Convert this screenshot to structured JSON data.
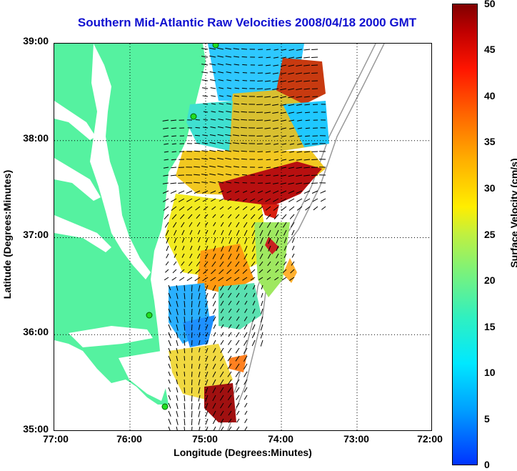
{
  "title": "Southern Mid-Atlantic Raw Velocities 2008/04/18 2000 GMT",
  "axes": {
    "xlabel": "Longitude (Degrees:Minutes)",
    "ylabel": "Latitude (Degrees:Minutes)",
    "x_ticks": [
      "77:00",
      "76:00",
      "75:00",
      "74:00",
      "73:00",
      "72:00"
    ],
    "y_ticks": [
      "39:00",
      "38:00",
      "37:00",
      "36:00",
      "35:00"
    ]
  },
  "colorbar": {
    "label": "Surface Velocity (cm/s)",
    "ticks": [
      "50",
      "45",
      "40",
      "35",
      "30",
      "25",
      "20",
      "15",
      "10",
      "5",
      "0"
    ]
  },
  "colors": {
    "land": "#55f2a0",
    "title": "#1010d0",
    "station": "#22dd22"
  }
}
